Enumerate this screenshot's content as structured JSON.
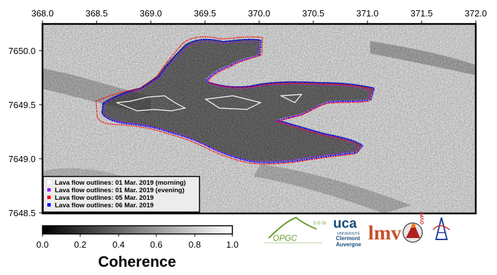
{
  "x_ticks": [
    "368.0",
    "368.5",
    "369.0",
    "369.5",
    "370.0",
    "370.5",
    "371.0",
    "371.5",
    "372.0"
  ],
  "y_ticks": [
    "7650.0",
    "7649.5",
    "7649.0",
    "7648.5"
  ],
  "legend": [
    {
      "label": "Lava flow outlines: 01 Mar. 2019 (morning)",
      "color": "#ffffff"
    },
    {
      "label": "Lava flow outlines: 01 Mar. 2019 (evening)",
      "color": "#a020f0"
    },
    {
      "label": "Lava flow outlines: 05 Mar. 2019",
      "color": "#ff0000"
    },
    {
      "label": "Lava flow outlines: 06 Mar. 2019",
      "color": "#0000ff"
    }
  ],
  "colorbar": {
    "ticks": [
      "0.0",
      "0.2",
      "0.4",
      "0.6",
      "0.8",
      "1.0"
    ],
    "title": "Coherence"
  },
  "logos": {
    "opgc": "OPGC",
    "so": "S.O OI",
    "uca": "uca",
    "uca_l1": "UNIVERSITÉ",
    "uca_l2": "Clermont",
    "uca_l3": "Auvergne",
    "lmv": "lmv",
    "ovpf": "OVPF"
  }
}
